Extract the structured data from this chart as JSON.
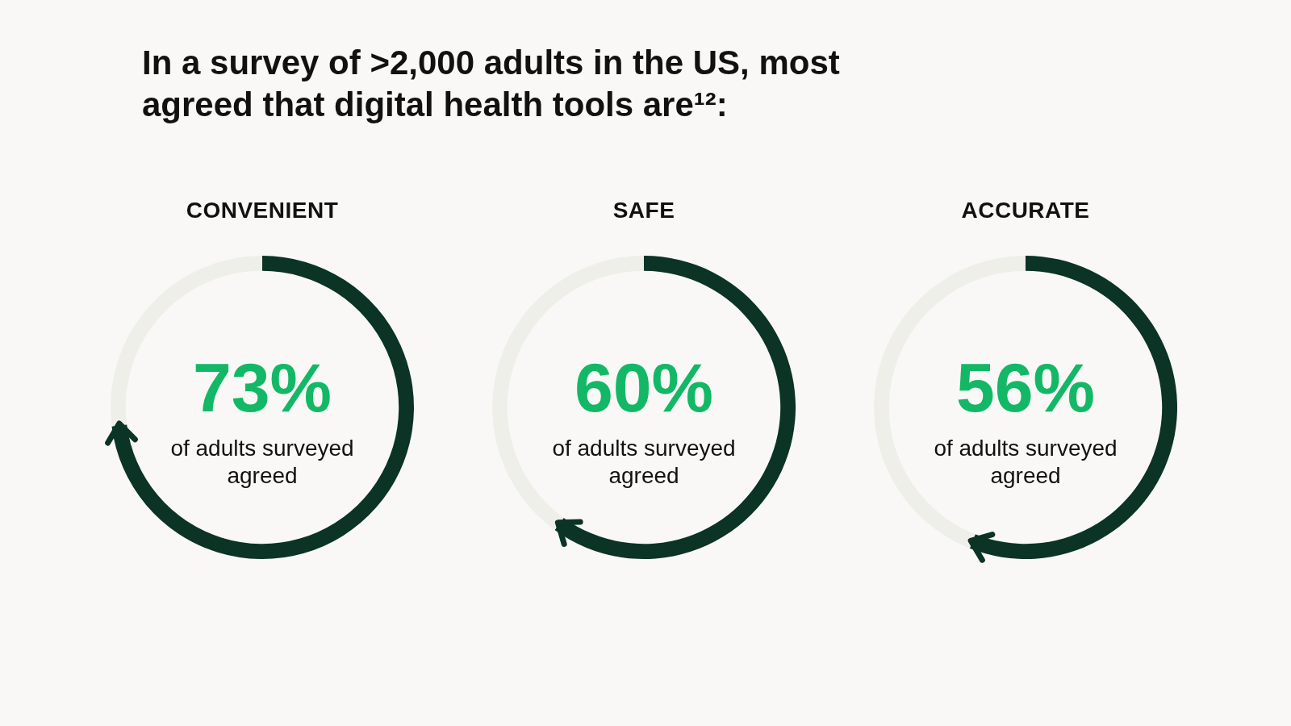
{
  "chart_data": [
    {
      "type": "other",
      "title": "In a survey of >2,000 adults in the US, most agreed that digital health tools are¹²:"
    },
    {
      "type": "donut",
      "title": "CONVENIENT",
      "categories": [
        null,
        null
      ],
      "values": [
        73,
        27
      ],
      "colors": [
        "#0b3326",
        "#efefea"
      ],
      "value_labels": [
        "73%",
        null
      ],
      "annotations": [
        "of adults surveyed agreed"
      ]
    },
    {
      "type": "donut",
      "title": "SAFE",
      "categories": [
        null,
        null
      ],
      "values": [
        60,
        40
      ],
      "colors": [
        "#0b3326",
        "#efefea"
      ],
      "value_labels": [
        "60%",
        null
      ],
      "annotations": [
        "of adults surveyed agreed"
      ]
    },
    {
      "type": "donut",
      "title": "ACCURATE",
      "categories": [
        null,
        null
      ],
      "values": [
        56,
        44
      ],
      "colors": [
        "#0b3326",
        "#efefea"
      ],
      "value_labels": [
        "56%",
        null
      ],
      "annotations": [
        "of adults surveyed agreed"
      ]
    }
  ]
}
